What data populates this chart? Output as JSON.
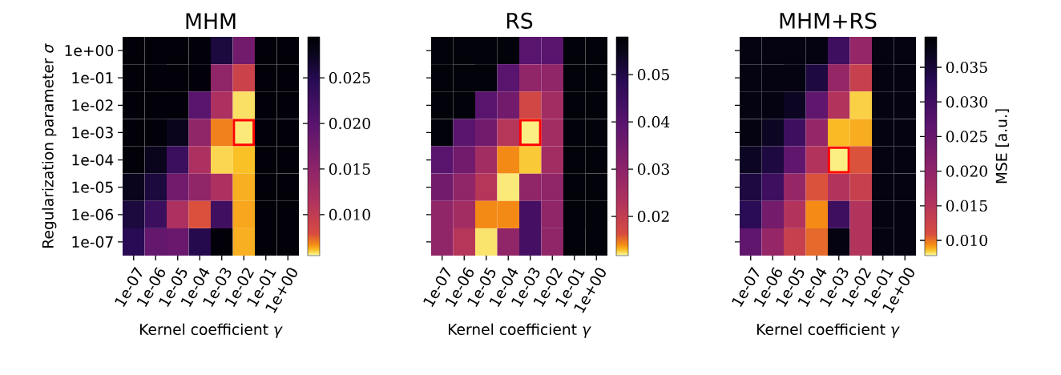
{
  "chart_data": [
    {
      "type": "heatmap",
      "title": "MHM",
      "xlabel": "Kernel coefficient *γ*",
      "ylabel": "Regularization parameter *σ*",
      "categories": [
        "1e-07",
        "1e-06",
        "1e-05",
        "1e-04",
        "1e-03",
        "1e-02",
        "1e-01",
        "1e+00"
      ],
      "y_categories": [
        "1e+00",
        "1e-01",
        "1e-02",
        "1e-03",
        "1e-04",
        "1e-05",
        "1e-06",
        "1e-07"
      ],
      "cells": [
        [
          0.029,
          0.029,
          0.029,
          0.029,
          0.0259,
          0.0176,
          0.029,
          0.029
        ],
        [
          0.029,
          0.029,
          0.029,
          0.029,
          0.0147,
          0.009,
          0.029,
          0.029
        ],
        [
          0.029,
          0.029,
          0.029,
          0.02,
          0.0117,
          0.0058,
          0.029,
          0.029
        ],
        [
          0.029,
          0.029,
          0.0276,
          0.0147,
          0.0069,
          0.0057,
          0.029,
          0.029
        ],
        [
          0.029,
          0.0276,
          0.0228,
          0.0117,
          0.0059,
          0.0061,
          0.029,
          0.029
        ],
        [
          0.0276,
          0.0259,
          0.0176,
          0.0147,
          0.0117,
          0.0063,
          0.029,
          0.029
        ],
        [
          0.0259,
          0.0228,
          0.0117,
          0.0078,
          0.0224,
          0.0064,
          0.029,
          0.029
        ],
        [
          0.0247,
          0.019,
          0.0185,
          0.025,
          0.029,
          0.0063,
          0.029,
          0.029
        ]
      ],
      "clim": [
        0.0055,
        0.0295
      ],
      "cticks": [
        {
          "value": 0.01,
          "label": "0.010"
        },
        0.015,
        {
          "value": 0.02,
          "label": "0.020"
        },
        0.025
      ]
    },
    {
      "type": "heatmap",
      "title": "RS",
      "xlabel": "Kernel coefficient *γ*",
      "tick_labels": "x",
      "categories": [
        "1e-07",
        "1e-06",
        "1e-05",
        "1e-04",
        "1e-03",
        "1e-02",
        "1e-01",
        "1e+00"
      ],
      "y_categories": [
        "1e+00",
        "1e-01",
        "1e-02",
        "1e-03",
        "1e-04",
        "1e-05",
        "1e-06",
        "1e-07"
      ],
      "cells": [
        [
          0.057,
          0.057,
          0.057,
          0.057,
          0.0396,
          0.0396,
          0.057,
          0.057
        ],
        [
          0.057,
          0.057,
          0.057,
          0.0396,
          0.0295,
          0.0295,
          0.057,
          0.057
        ],
        [
          0.057,
          0.057,
          0.0396,
          0.035,
          0.0175,
          0.0258,
          0.057,
          0.057
        ],
        [
          0.057,
          0.0396,
          0.035,
          0.0221,
          0.012,
          0.0258,
          0.057,
          0.057
        ],
        [
          0.0396,
          0.035,
          0.0258,
          0.0141,
          0.0127,
          0.0258,
          0.057,
          0.057
        ],
        [
          0.035,
          0.0295,
          0.0221,
          0.0121,
          0.0295,
          0.0295,
          0.057,
          0.057
        ],
        [
          0.0295,
          0.0258,
          0.0141,
          0.0141,
          0.0433,
          0.0295,
          0.057,
          0.057
        ],
        [
          0.0295,
          0.0221,
          0.0122,
          0.0295,
          0.0433,
          0.0295,
          0.057,
          0.057
        ]
      ],
      "clim": [
        0.0117,
        0.058
      ],
      "cticks": [
        0.02,
        0.03,
        0.04,
        0.05
      ]
    },
    {
      "type": "heatmap",
      "title": "MHM+RS",
      "xlabel": "Kernel coefficient *γ*",
      "clabel": "MSE [a.u.]",
      "tick_labels": "x",
      "categories": [
        "1e-07",
        "1e-06",
        "1e-05",
        "1e-04",
        "1e-03",
        "1e-02",
        "1e-01",
        "1e+00"
      ],
      "y_categories": [
        "1e+00",
        "1e-01",
        "1e-02",
        "1e-03",
        "1e-04",
        "1e-05",
        "1e-06",
        "1e-07"
      ],
      "cells": [
        [
          0.038,
          0.038,
          0.038,
          0.038,
          0.0303,
          0.0192,
          0.038,
          0.038
        ],
        [
          0.038,
          0.038,
          0.038,
          0.0344,
          0.0192,
          0.013,
          0.038,
          0.038
        ],
        [
          0.038,
          0.038,
          0.0365,
          0.026,
          0.0154,
          0.0084,
          0.038,
          0.038
        ],
        [
          0.038,
          0.0365,
          0.0303,
          0.0192,
          0.0087,
          0.0089,
          0.038,
          0.038
        ],
        [
          0.0365,
          0.0344,
          0.026,
          0.0154,
          0.008,
          0.0108,
          0.038,
          0.038
        ],
        [
          0.0344,
          0.0303,
          0.0192,
          0.0108,
          0.0154,
          0.013,
          0.038,
          0.038
        ],
        [
          0.0328,
          0.0235,
          0.0154,
          0.0094,
          0.0303,
          0.0154,
          0.038,
          0.038
        ],
        [
          0.026,
          0.0192,
          0.013,
          0.0102,
          0.038,
          0.0154,
          0.038,
          0.038
        ]
      ],
      "clim": [
        0.0078,
        0.0394
      ],
      "cticks": [
        {
          "value": 0.01,
          "label": "0.010"
        },
        0.015,
        {
          "value": 0.02,
          "label": "0.020"
        },
        0.025,
        {
          "value": 0.03,
          "label": "0.030"
        },
        0.035
      ]
    }
  ]
}
